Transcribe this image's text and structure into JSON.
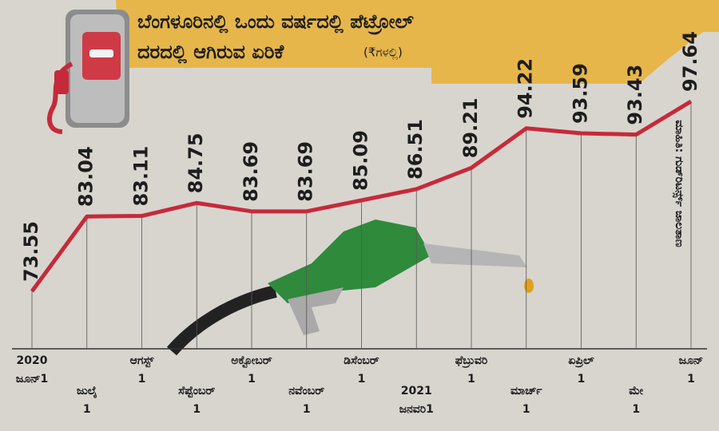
{
  "chart_data": {
    "type": "line",
    "title": [
      "ಬೆಂಗಳೂರಿನಲ್ಲಿ ಒಂದು ವರ್ಷದಲ್ಲಿ ಪೆಟ್ರೋಲ್",
      "ದರದಲ್ಲಿ ಆಗಿರುವ ಏರಿಕೆ"
    ],
    "subtitle": "(₹ಗಳಲ್ಲಿ)",
    "source": "ಮಾಹಿತಿ: ಗುಡ್‌ರಿಟರ್ನ್ಸ್ ಜಾಲತಾಣ",
    "categories": [
      [
        "2020",
        "ಜೂನ್1"
      ],
      [
        "ಜುಲೈ",
        "1"
      ],
      [
        "ಆಗಸ್ಟ್",
        "1"
      ],
      [
        "ಸೆಪ್ಟೆಂಬರ್",
        "1"
      ],
      [
        "ಅಕ್ಟೋಬರ್",
        "1"
      ],
      [
        "ನವೆಂಬರ್",
        "1"
      ],
      [
        "ಡಿಸೆಂಬರ್",
        "1"
      ],
      [
        "2021",
        "ಜನವರಿ1"
      ],
      [
        "ಫೆಬ್ರುವರಿ",
        "1"
      ],
      [
        "ಮಾರ್ಚ್",
        "1"
      ],
      [
        "ಏಪ್ರಿಲ್",
        "1"
      ],
      [
        "ಮೇ",
        "1"
      ],
      [
        "ಜೂನ್",
        "1"
      ]
    ],
    "values": [
      73.55,
      83.04,
      83.11,
      84.75,
      83.69,
      83.69,
      85.09,
      86.51,
      89.21,
      94.22,
      93.59,
      93.43,
      97.64
    ],
    "color": "#c62a3a"
  }
}
